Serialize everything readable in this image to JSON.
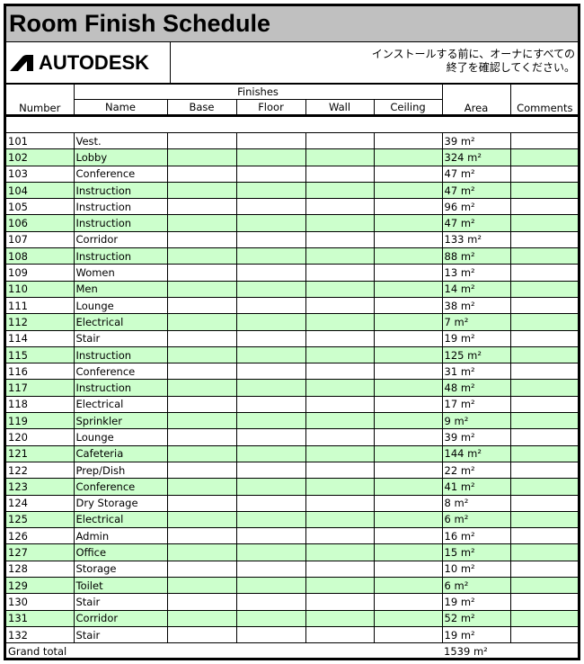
{
  "title": "Room Finish Schedule",
  "logo": {
    "text": "AUTODESK",
    "icon": "autodesk-logo-icon"
  },
  "note": {
    "line1": "インストールする前に、オーナにすべての",
    "line2": "終了を確認してください。"
  },
  "headers": {
    "number": "Number",
    "finishes": "Finishes",
    "name": "Name",
    "base": "Base",
    "floor": "Floor",
    "wall": "Wall",
    "ceiling": "Ceiling",
    "area": "Area",
    "comments": "Comments"
  },
  "colors": {
    "title_bg": "#c0c0c0",
    "row_green": "#ccffcc",
    "row_gray": "#f4f4f4"
  },
  "rows": [
    {
      "number": "101",
      "name": "Vest.",
      "area": "39 m²"
    },
    {
      "number": "102",
      "name": "Lobby",
      "area": "324 m²"
    },
    {
      "number": "103",
      "name": "Conference",
      "area": "47 m²"
    },
    {
      "number": "104",
      "name": "Instruction",
      "area": "47 m²"
    },
    {
      "number": "105",
      "name": "Instruction",
      "area": "96 m²"
    },
    {
      "number": "106",
      "name": "Instruction",
      "area": "47 m²"
    },
    {
      "number": "107",
      "name": "Corridor",
      "area": "133 m²"
    },
    {
      "number": "108",
      "name": "Instruction",
      "area": "88 m²"
    },
    {
      "number": "109",
      "name": "Women",
      "area": "13 m²"
    },
    {
      "number": "110",
      "name": "Men",
      "area": "14 m²"
    },
    {
      "number": "111",
      "name": "Lounge",
      "area": "38 m²"
    },
    {
      "number": "112",
      "name": "Electrical",
      "area": "7 m²"
    },
    {
      "number": "114",
      "name": "Stair",
      "area": "19 m²"
    },
    {
      "number": "115",
      "name": "Instruction",
      "area": "125 m²"
    },
    {
      "number": "116",
      "name": "Conference",
      "area": "31 m²"
    },
    {
      "number": "117",
      "name": "Instruction",
      "area": "48 m²"
    },
    {
      "number": "118",
      "name": "Electrical",
      "area": "17 m²"
    },
    {
      "number": "119",
      "name": "Sprinkler",
      "area": "9 m²"
    },
    {
      "number": "120",
      "name": "Lounge",
      "area": "39 m²"
    },
    {
      "number": "121",
      "name": "Cafeteria",
      "area": "144 m²"
    },
    {
      "number": "122",
      "name": "Prep/Dish",
      "area": "22 m²"
    },
    {
      "number": "123",
      "name": "Conference",
      "area": "41 m²"
    },
    {
      "number": "124",
      "name": "Dry Storage",
      "area": "8 m²"
    },
    {
      "number": "125",
      "name": "Electrical",
      "area": "6 m²"
    },
    {
      "number": "126",
      "name": "Admin",
      "area": "16 m²"
    },
    {
      "number": "127",
      "name": "Office",
      "area": "15 m²"
    },
    {
      "number": "128",
      "name": "Storage",
      "area": "10 m²"
    },
    {
      "number": "129",
      "name": "Toilet",
      "area": "6 m²"
    },
    {
      "number": "130",
      "name": "Stair",
      "area": "19 m²"
    },
    {
      "number": "131",
      "name": "Corridor",
      "area": "52 m²"
    },
    {
      "number": "132",
      "name": "Stair",
      "area": "19 m²"
    }
  ],
  "grand_total": {
    "label": "Grand total",
    "area": "1539 m²"
  }
}
